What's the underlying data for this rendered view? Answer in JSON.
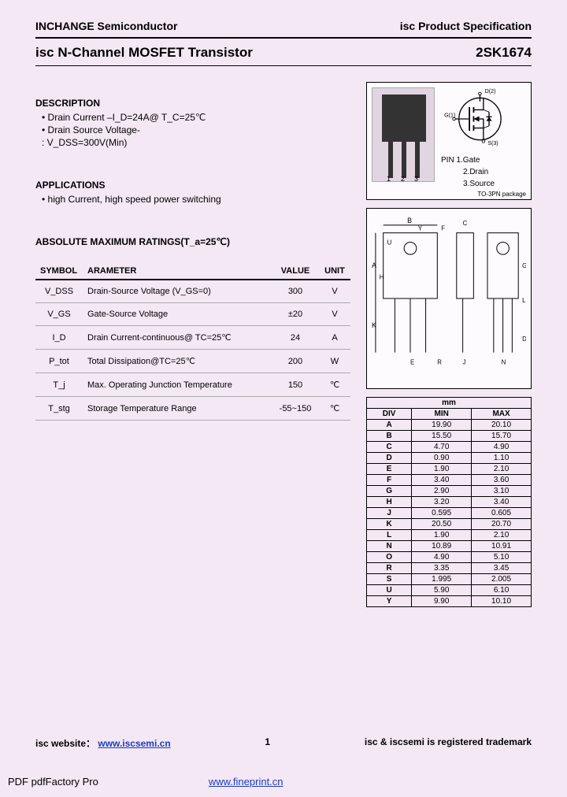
{
  "header": {
    "company": "INCHANGE Semiconductor",
    "docType": "isc Product Specification"
  },
  "title": {
    "name": "isc N-Channel MOSFET Transistor",
    "part": "2SK1674"
  },
  "description": {
    "heading": "DESCRIPTION",
    "l1": "• Drain Current –I_D=24A@ T_C=25℃",
    "l2": "• Drain Source Voltage-",
    "l3": "  : V_DSS=300V(Min)"
  },
  "applications": {
    "heading": "APPLICATIONS",
    "l1": "• high Current, high speed power switching"
  },
  "ratingsHead": "ABSOLUTE MAXIMUM RATINGS(T_a=25℃)",
  "cols": {
    "c1": "SYMBOL",
    "c2": "ARAMETER",
    "c3": "VALUE",
    "c4": "UNIT"
  },
  "rows": [
    {
      "s": "V_DSS",
      "p": "Drain-Source Voltage (V_GS=0)",
      "v": "300",
      "u": "V"
    },
    {
      "s": "V_GS",
      "p": "Gate-Source Voltage",
      "v": "±20",
      "u": "V"
    },
    {
      "s": "I_D",
      "p": "Drain Current-continuous@ TC=25℃",
      "v": "24",
      "u": "A"
    },
    {
      "s": "P_tot",
      "p": "Total Dissipation@TC=25℃",
      "v": "200",
      "u": "W"
    },
    {
      "s": "T_j",
      "p": "Max. Operating Junction Temperature",
      "v": "150",
      "u": "℃"
    },
    {
      "s": "T_stg",
      "p": "Storage Temperature Range",
      "v": "-55~150",
      "u": "℃"
    }
  ],
  "pins": {
    "title": "PIN  1.Gate",
    "p2": "2.Drain",
    "p3": "3.Source",
    "pkg": "TO-3PN package",
    "d": "D(2)",
    "g": "G(1)",
    "s": "S(3)",
    "leg1": "1",
    "leg2": "2",
    "leg3": "3"
  },
  "dim": {
    "mm": "mm",
    "div": "DIV",
    "min": "MIN",
    "max": "MAX",
    "r": [
      [
        "A",
        "19.90",
        "20.10"
      ],
      [
        "B",
        "15.50",
        "15.70"
      ],
      [
        "C",
        "4.70",
        "4.90"
      ],
      [
        "D",
        "0.90",
        "1.10"
      ],
      [
        "E",
        "1.90",
        "2.10"
      ],
      [
        "F",
        "3.40",
        "3.60"
      ],
      [
        "G",
        "2.90",
        "3.10"
      ],
      [
        "H",
        "3.20",
        "3.40"
      ],
      [
        "J",
        "0.595",
        "0.605"
      ],
      [
        "K",
        "20.50",
        "20.70"
      ],
      [
        "L",
        "1.90",
        "2.10"
      ],
      [
        "N",
        "10.89",
        "10.91"
      ],
      [
        "O",
        "4.90",
        "5.10"
      ],
      [
        "R",
        "3.35",
        "3.45"
      ],
      [
        "S",
        "1.995",
        "2.005"
      ],
      [
        "U",
        "5.90",
        "6.10"
      ],
      [
        "Y",
        "9.90",
        "10.10"
      ]
    ]
  },
  "footer": {
    "websiteLabel": "isc website：",
    "website": "www.iscsemi.cn",
    "page": "1",
    "trademark": "isc & iscsemi is registered trademark"
  },
  "pdf": {
    "app": "PDF  pdfFactory Pro",
    "link": "www.fineprint.cn"
  }
}
